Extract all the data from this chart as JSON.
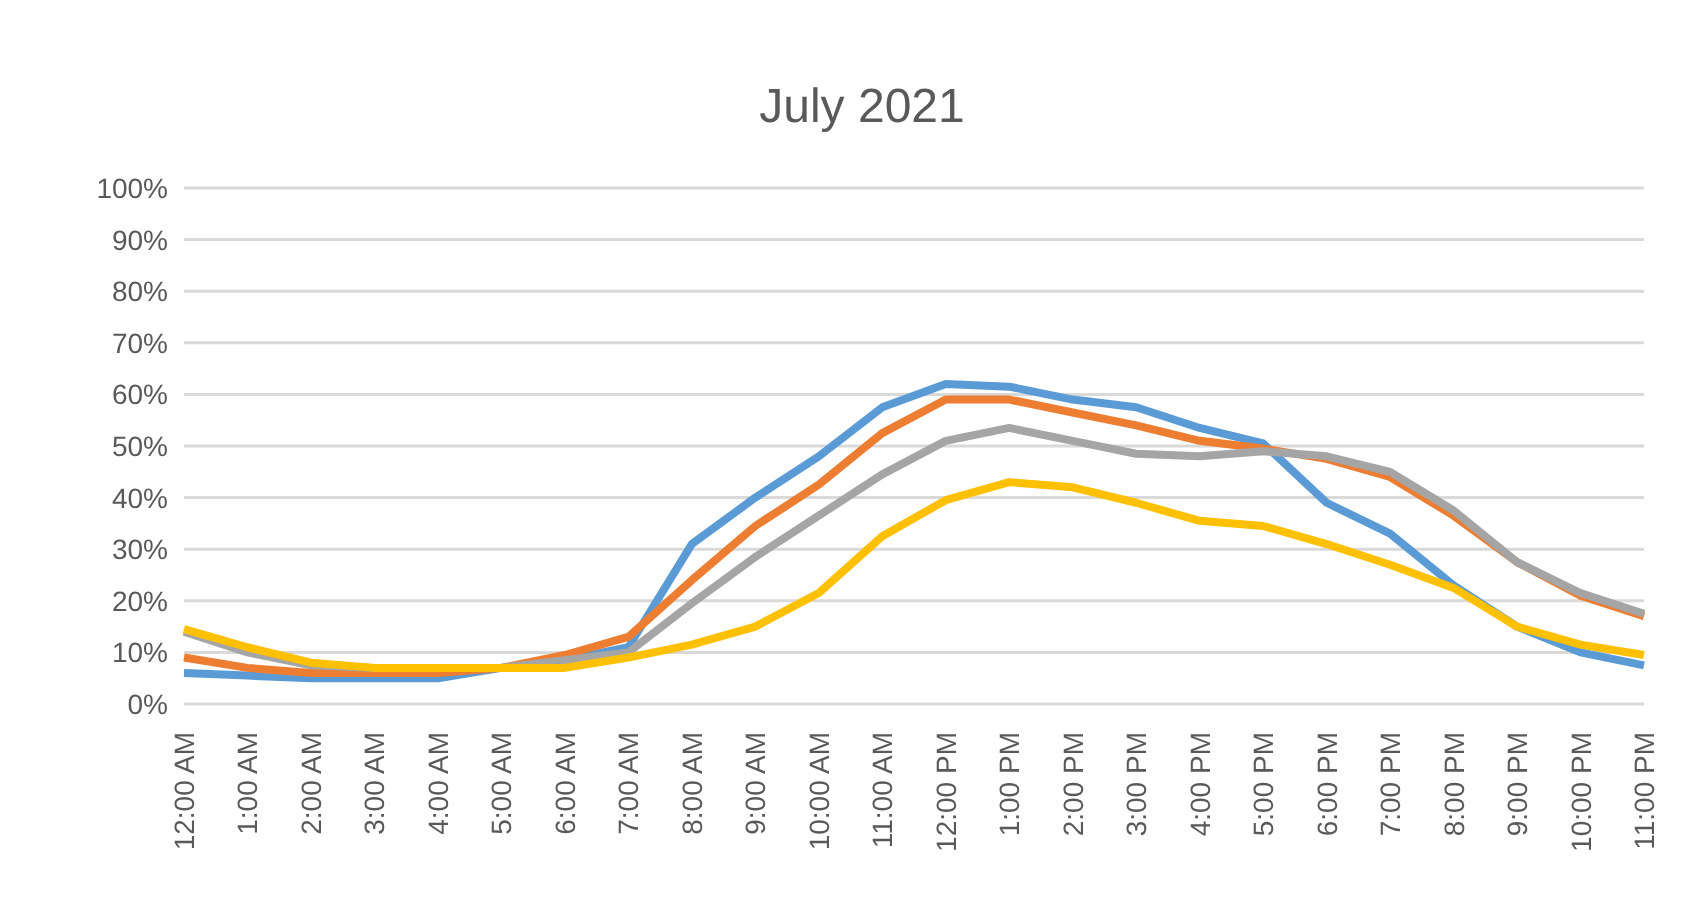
{
  "chart_data": {
    "type": "line",
    "title": "July 2021",
    "categories": [
      "12:00 AM",
      "1:00 AM",
      "2:00 AM",
      "3:00 AM",
      "4:00 AM",
      "5:00 AM",
      "6:00 AM",
      "7:00 AM",
      "8:00 AM",
      "9:00 AM",
      "10:00 AM",
      "11:00 AM",
      "12:00 PM",
      "1:00 PM",
      "2:00 PM",
      "3:00 PM",
      "4:00 PM",
      "5:00 PM",
      "6:00 PM",
      "7:00 PM",
      "8:00 PM",
      "9:00 PM",
      "10:00 PM",
      "11:00 PM"
    ],
    "series": [
      {
        "color": "#5b9bd5",
        "values": [
          6,
          5.5,
          5,
          5,
          5,
          7,
          8.5,
          11,
          31,
          40,
          48,
          57.5,
          62,
          61.5,
          59,
          57.5,
          53.5,
          50.5,
          39,
          33,
          23,
          15,
          10,
          7.5
        ]
      },
      {
        "color": "#ed7d31",
        "values": [
          9,
          7,
          6,
          6,
          6,
          7,
          9.5,
          13,
          24,
          34.5,
          42.5,
          52.5,
          59,
          59,
          56.5,
          54,
          51,
          49.5,
          47.5,
          44,
          36.5,
          27.5,
          21,
          17
        ]
      },
      {
        "color": "#a5a5a5",
        "values": [
          14,
          10,
          7.5,
          7,
          7,
          7,
          8.5,
          10,
          19.5,
          28.5,
          36.5,
          44.5,
          51,
          53.5,
          51,
          48.5,
          48,
          49,
          48,
          45,
          37.5,
          27.5,
          21.5,
          17.5
        ]
      },
      {
        "color": "#ffc000",
        "values": [
          14.5,
          11,
          8,
          7,
          7,
          7,
          7,
          9,
          11.5,
          15,
          21.5,
          32.5,
          39.5,
          43,
          42,
          39,
          35.5,
          34.5,
          31,
          27,
          22.5,
          15,
          11.5,
          9.5
        ]
      }
    ],
    "ylim": [
      0,
      100
    ],
    "yticks": [
      {
        "value": 0,
        "label": "0%"
      },
      {
        "value": 10,
        "label": "10%"
      },
      {
        "value": 20,
        "label": "20%"
      },
      {
        "value": 30,
        "label": "30%"
      },
      {
        "value": 40,
        "label": "40%"
      },
      {
        "value": 50,
        "label": "50%"
      },
      {
        "value": 60,
        "label": "60%"
      },
      {
        "value": 70,
        "label": "70%"
      },
      {
        "value": 80,
        "label": "80%"
      },
      {
        "value": 90,
        "label": "90%"
      },
      {
        "value": 100,
        "label": "100%"
      }
    ],
    "grid": "y",
    "legend": false,
    "marker": "none",
    "line_style": "solid"
  }
}
